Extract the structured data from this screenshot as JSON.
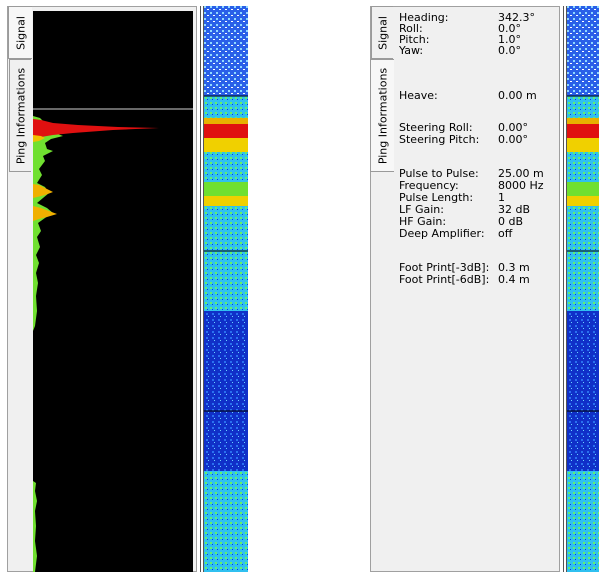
{
  "left_window": {
    "tabs": [
      {
        "label": "Signal",
        "active": true
      },
      {
        "label": "Ping Informations",
        "active": false
      }
    ]
  },
  "right_window": {
    "tabs": [
      {
        "label": "Signal",
        "active": false
      },
      {
        "label": "Ping Informations",
        "active": true
      }
    ],
    "ping_info": [
      {
        "label": "Heading:",
        "value": "342.3°"
      },
      {
        "label": "Roll:",
        "value": "0.0°"
      },
      {
        "label": "Pitch:",
        "value": "1.0°"
      },
      {
        "label": "Yaw:",
        "value": "0.0°"
      },
      {
        "label": "Heave:",
        "value": "0.00 m"
      },
      {
        "label": "Steering Roll:",
        "value": "0.00°"
      },
      {
        "label": "Steering Pitch:",
        "value": "0.00°"
      },
      {
        "label": "Pulse to Pulse:",
        "value": "25.00 m"
      },
      {
        "label": "Frequency:",
        "value": "8000 Hz"
      },
      {
        "label": "Pulse Length:",
        "value": "1"
      },
      {
        "label": "LF Gain:",
        "value": "32 dB"
      },
      {
        "label": "HF Gain:",
        "value": "0 dB"
      },
      {
        "label": "Deep Amplifier:",
        "value": "off"
      },
      {
        "label": "Foot Print[-3dB]:",
        "value": "0.3 m"
      },
      {
        "label": "Foot Print[-6dB]:",
        "value": "0.4 m"
      }
    ]
  },
  "colors": {
    "panel_bg": "#f0f0f0",
    "plot_bg": "#000000",
    "sonar_strong": "#e01010",
    "sonar_medium": "#f0c000",
    "sonar_weak": "#70e030",
    "sonar_background": "#1040d0"
  }
}
